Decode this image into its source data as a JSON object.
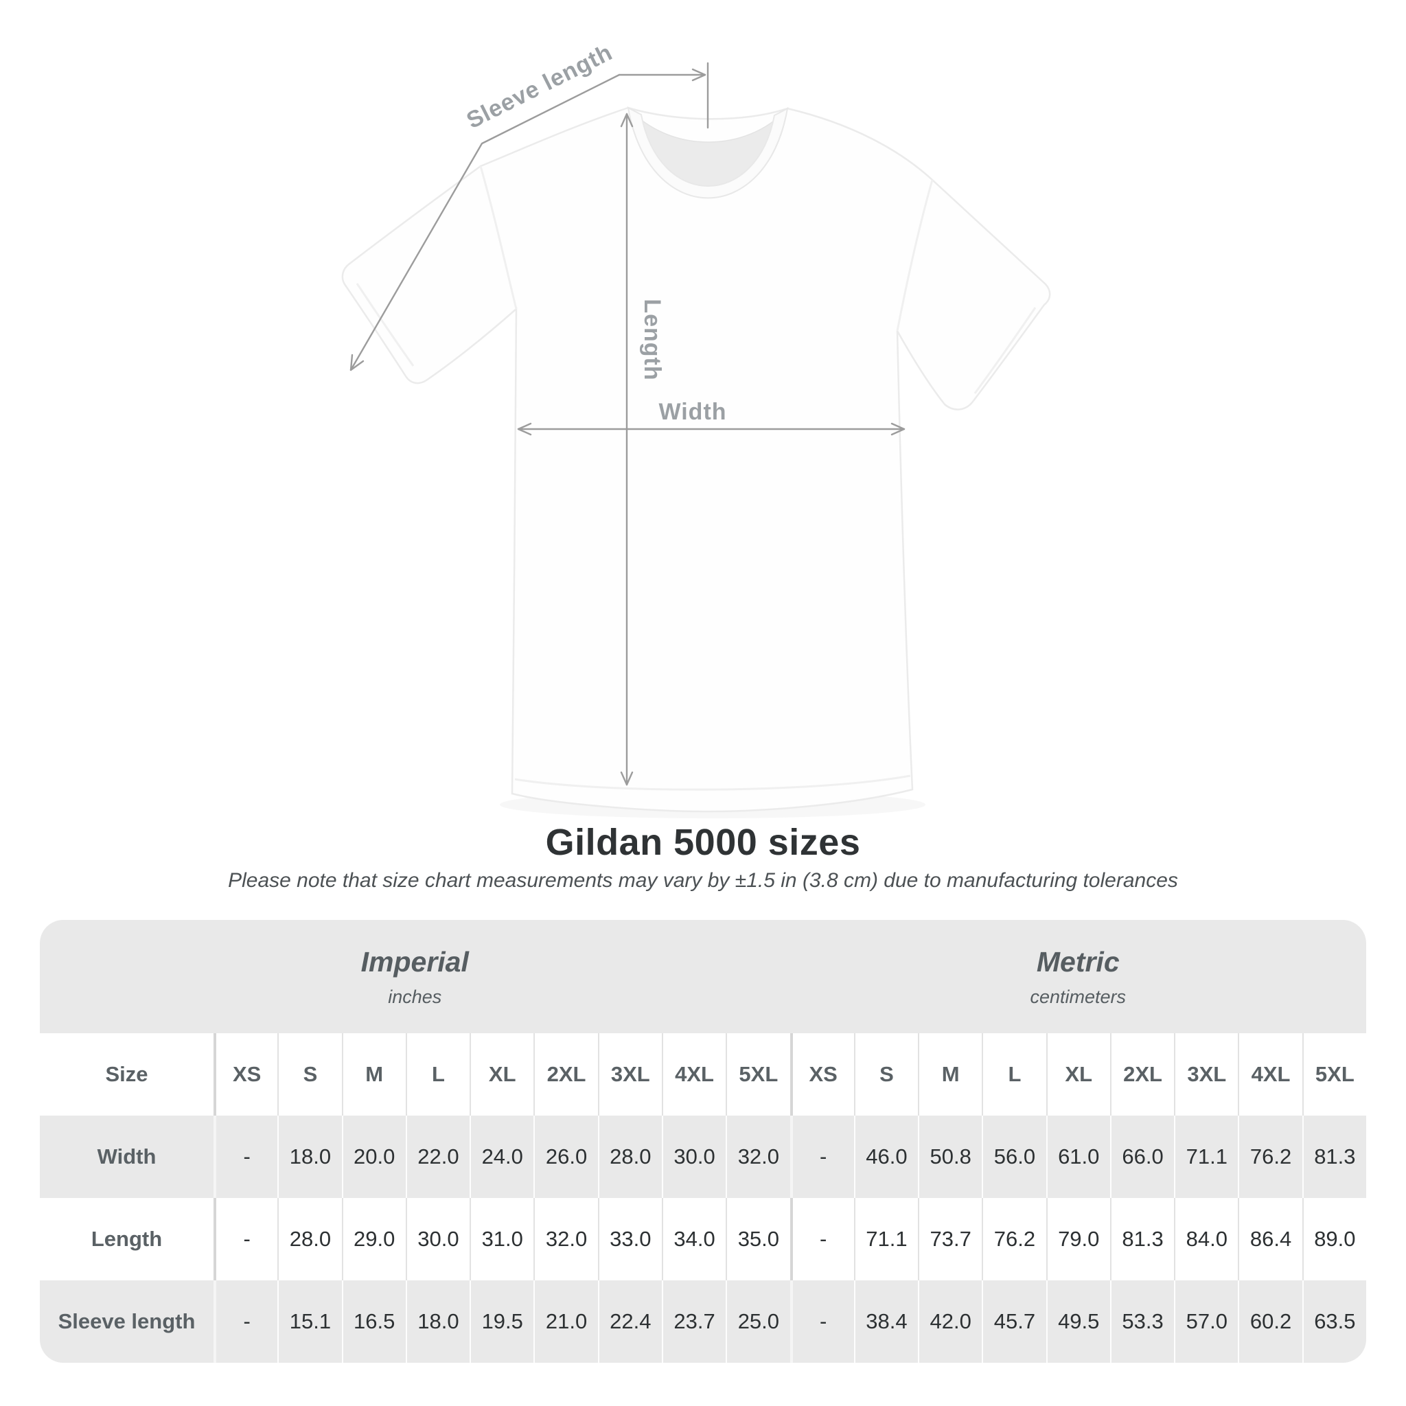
{
  "title": "Gildan 5000 sizes",
  "subtitle": "Please note that size chart measurements may vary by ±1.5 in (3.8 cm) due to manufacturing tolerances",
  "diagram": {
    "sleeve_length_label": "Sleeve length",
    "length_label": "Length",
    "width_label": "Width"
  },
  "chart_data": {
    "type": "table",
    "title": "Gildan 5000 sizes",
    "section_headers": [
      {
        "label": "Imperial",
        "sublabel": "inches"
      },
      {
        "label": "Metric",
        "sublabel": "centimeters"
      }
    ],
    "size_column_header": "Size",
    "sizes": [
      "XS",
      "S",
      "M",
      "L",
      "XL",
      "2XL",
      "3XL",
      "4XL",
      "5XL"
    ],
    "rows": [
      {
        "label": "Width",
        "imperial": [
          "-",
          "18.0",
          "20.0",
          "22.0",
          "24.0",
          "26.0",
          "28.0",
          "30.0",
          "32.0"
        ],
        "metric": [
          "-",
          "46.0",
          "50.8",
          "56.0",
          "61.0",
          "66.0",
          "71.1",
          "76.2",
          "81.3"
        ]
      },
      {
        "label": "Length",
        "imperial": [
          "-",
          "28.0",
          "29.0",
          "30.0",
          "31.0",
          "32.0",
          "33.0",
          "34.0",
          "35.0"
        ],
        "metric": [
          "-",
          "71.1",
          "73.7",
          "76.2",
          "79.0",
          "81.3",
          "84.0",
          "86.4",
          "89.0"
        ]
      },
      {
        "label": "Sleeve length",
        "imperial": [
          "-",
          "15.1",
          "16.5",
          "18.0",
          "19.5",
          "21.0",
          "22.4",
          "23.7",
          "25.0"
        ],
        "metric": [
          "-",
          "38.4",
          "42.0",
          "45.7",
          "49.5",
          "53.3",
          "57.0",
          "60.2",
          "63.5"
        ]
      }
    ]
  },
  "colors": {
    "background": "#ffffff",
    "table_band_gray": "#e9e9e9",
    "row_alt_gray": "#e9e9e9",
    "separator_light": "#e2e2e2",
    "separator_heavy": "#d6d6d6",
    "title_text": "#2f3335",
    "value_text": "#2c3032",
    "label_text": "#5a6165",
    "annotation_gray": "#9c9c9c"
  }
}
